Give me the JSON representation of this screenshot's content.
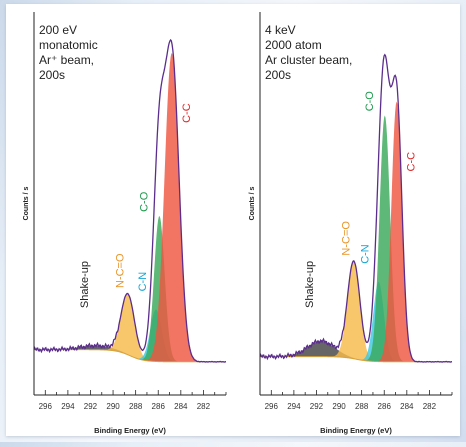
{
  "chart_data": [
    {
      "type": "area",
      "title": "",
      "annotation_lines": [
        "200 eV",
        "monatomic",
        "Ar⁺ beam,",
        "200s"
      ],
      "xlabel": "Binding Energy (eV)",
      "ylabel": "Counts / s",
      "xlim": [
        297,
        280
      ],
      "x_reversed": true,
      "xticks": [
        296,
        294,
        292,
        290,
        288,
        286,
        284,
        282
      ],
      "ylim": [
        0,
        100
      ],
      "grid": false,
      "peaks": [
        {
          "name": "Shake-up",
          "center": 291.5,
          "fwhm": 3.2,
          "height": 1.2,
          "color": "#444444",
          "label_color": "#222222"
        },
        {
          "name": "N-C=O",
          "center": 288.7,
          "fwhm": 1.4,
          "height": 17.5,
          "color": "#f6b94a",
          "label_color": "#e8962a"
        },
        {
          "name": "C-N",
          "center": 286.2,
          "fwhm": 1.2,
          "height": 15,
          "color": "#3cc8e0",
          "label_color": "#1aa6d6"
        },
        {
          "name": "C-O",
          "center": 285.9,
          "fwhm": 1.1,
          "height": 42,
          "color": "#3aa85a",
          "label_color": "#1f9a4e"
        },
        {
          "name": "C-C",
          "center": 284.8,
          "fwhm": 1.5,
          "height": 89,
          "color": "#ef5540",
          "label_color": "#e12b2b"
        }
      ],
      "background": {
        "left": 5,
        "right": 1.5
      },
      "envelope_color": "#5b2d8c"
    },
    {
      "type": "area",
      "title": "",
      "annotation_lines": [
        "4 keV",
        "2000 atom",
        "Ar cluster beam,",
        "200s"
      ],
      "xlabel": "Binding Energy (eV)",
      "ylabel": "Counts / s",
      "xlim": [
        297,
        280
      ],
      "x_reversed": true,
      "xticks": [
        296,
        294,
        292,
        290,
        288,
        286,
        284,
        282
      ],
      "ylim": [
        0,
        100
      ],
      "grid": false,
      "peaks": [
        {
          "name": "Shake-up",
          "center": 291.6,
          "fwhm": 2.8,
          "height": 4.5,
          "color": "#444444",
          "label_color": "#222222"
        },
        {
          "name": "N-C=O",
          "center": 288.7,
          "fwhm": 1.3,
          "height": 28,
          "color": "#f6b94a",
          "label_color": "#e8962a"
        },
        {
          "name": "C-N",
          "center": 286.5,
          "fwhm": 1.1,
          "height": 23,
          "color": "#3cc8e0",
          "label_color": "#1aa6d6"
        },
        {
          "name": "C-O",
          "center": 285.95,
          "fwhm": 1.1,
          "height": 71,
          "color": "#3aa85a",
          "label_color": "#1f9a4e"
        },
        {
          "name": "C-C",
          "center": 284.9,
          "fwhm": 1.1,
          "height": 75,
          "color": "#ef5540",
          "label_color": "#e12b2b"
        }
      ],
      "background": {
        "left": 3,
        "right": 1.5
      },
      "envelope_color": "#5b2d8c"
    }
  ]
}
